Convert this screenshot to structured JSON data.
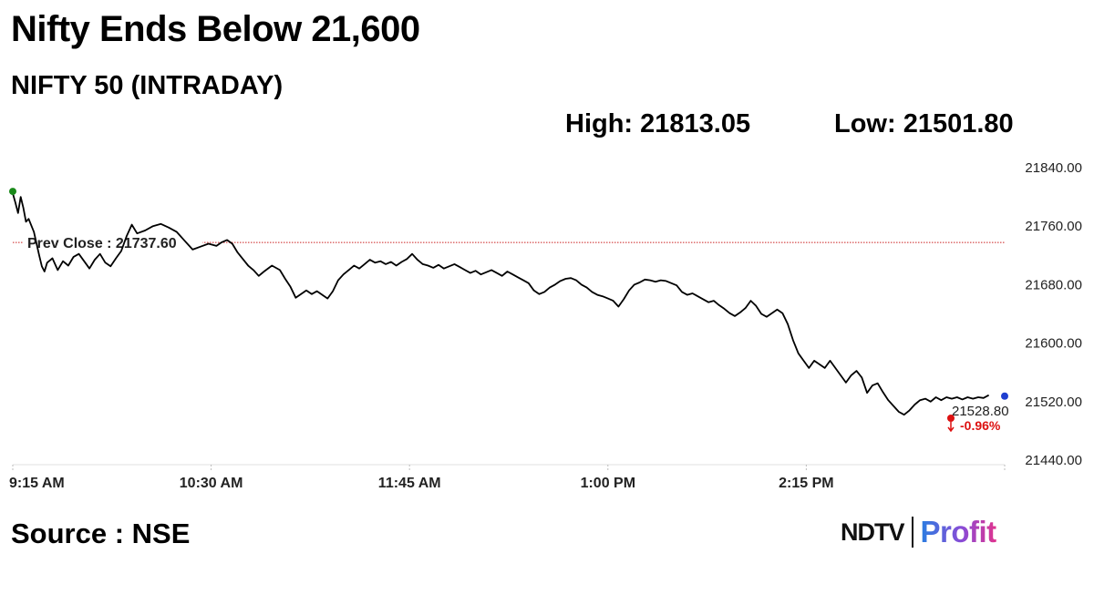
{
  "headline": "Nifty Ends Below 21,600",
  "subheadline": "NIFTY 50 (INTRADAY)",
  "high_text": "High: 21813.05",
  "low_text": "Low: 21501.80",
  "source": "Source : NSE",
  "logo": {
    "ndtv": "NDTV",
    "profit": "Profit"
  },
  "chart_data": {
    "type": "line",
    "ylim": [
      21440,
      21840
    ],
    "y_ticks": [
      "21840.00",
      "21760.00",
      "21680.00",
      "21600.00",
      "21520.00",
      "21440.00"
    ],
    "y_tick_values": [
      21840,
      21760,
      21680,
      21600,
      21520,
      21440
    ],
    "x_ticks": [
      "9:15 AM",
      "10:30 AM",
      "11:45 AM",
      "1:00 PM",
      "2:15 PM"
    ],
    "x_tick_minutes": [
      555,
      630,
      705,
      780,
      855
    ],
    "xlim_minutes": [
      555,
      930
    ],
    "prev_close": 21737.6,
    "prev_close_label": "Prev Close : 21737.60",
    "last_value_label": "21528.80",
    "change_label": "-0.96%",
    "colors": {
      "line": "#000000",
      "prev_close": "#cc2222",
      "start_dot": "#1a8a1a",
      "last_dot": "#1f3fd0",
      "change": "#dd1111"
    },
    "series": [
      {
        "points": [
          [
            555,
            21805
          ],
          [
            556,
            21792
          ],
          [
            557,
            21778
          ],
          [
            558,
            21800
          ],
          [
            559,
            21785
          ],
          [
            560,
            21766
          ],
          [
            561,
            21770
          ],
          [
            563,
            21752
          ],
          [
            565,
            21720
          ],
          [
            566,
            21705
          ],
          [
            567,
            21698
          ],
          [
            568,
            21710
          ],
          [
            570,
            21716
          ],
          [
            572,
            21700
          ],
          [
            574,
            21712
          ],
          [
            576,
            21706
          ],
          [
            578,
            21718
          ],
          [
            580,
            21722
          ],
          [
            582,
            21712
          ],
          [
            584,
            21702
          ],
          [
            586,
            21714
          ],
          [
            588,
            21722
          ],
          [
            590,
            21710
          ],
          [
            592,
            21705
          ],
          [
            594,
            21716
          ],
          [
            596,
            21726
          ],
          [
            598,
            21746
          ],
          [
            600,
            21762
          ],
          [
            602,
            21750
          ],
          [
            605,
            21754
          ],
          [
            608,
            21760
          ],
          [
            611,
            21763
          ],
          [
            614,
            21758
          ],
          [
            617,
            21752
          ],
          [
            620,
            21740
          ],
          [
            623,
            21728
          ],
          [
            626,
            21732
          ],
          [
            629,
            21736
          ],
          [
            632,
            21733
          ],
          [
            634,
            21738
          ],
          [
            636,
            21741
          ],
          [
            638,
            21736
          ],
          [
            640,
            21724
          ],
          [
            642,
            21715
          ],
          [
            644,
            21706
          ],
          [
            646,
            21700
          ],
          [
            648,
            21692
          ],
          [
            650,
            21698
          ],
          [
            653,
            21706
          ],
          [
            656,
            21700
          ],
          [
            658,
            21688
          ],
          [
            660,
            21677
          ],
          [
            662,
            21662
          ],
          [
            664,
            21667
          ],
          [
            666,
            21672
          ],
          [
            668,
            21667
          ],
          [
            670,
            21671
          ],
          [
            672,
            21666
          ],
          [
            674,
            21661
          ],
          [
            676,
            21671
          ],
          [
            678,
            21686
          ],
          [
            680,
            21694
          ],
          [
            682,
            21700
          ],
          [
            684,
            21706
          ],
          [
            686,
            21702
          ],
          [
            688,
            21708
          ],
          [
            690,
            21714
          ],
          [
            692,
            21710
          ],
          [
            694,
            21712
          ],
          [
            696,
            21708
          ],
          [
            698,
            21711
          ],
          [
            700,
            21706
          ],
          [
            702,
            21711
          ],
          [
            704,
            21715
          ],
          [
            706,
            21722
          ],
          [
            708,
            21714
          ],
          [
            710,
            21708
          ],
          [
            712,
            21706
          ],
          [
            714,
            21703
          ],
          [
            716,
            21707
          ],
          [
            718,
            21702
          ],
          [
            720,
            21705
          ],
          [
            722,
            21708
          ],
          [
            724,
            21704
          ],
          [
            726,
            21700
          ],
          [
            728,
            21696
          ],
          [
            730,
            21699
          ],
          [
            732,
            21694
          ],
          [
            734,
            21697
          ],
          [
            736,
            21700
          ],
          [
            738,
            21696
          ],
          [
            740,
            21692
          ],
          [
            742,
            21698
          ],
          [
            744,
            21694
          ],
          [
            746,
            21690
          ],
          [
            748,
            21686
          ],
          [
            750,
            21682
          ],
          [
            752,
            21672
          ],
          [
            754,
            21667
          ],
          [
            756,
            21670
          ],
          [
            758,
            21676
          ],
          [
            760,
            21680
          ],
          [
            762,
            21685
          ],
          [
            764,
            21688
          ],
          [
            766,
            21689
          ],
          [
            768,
            21686
          ],
          [
            770,
            21680
          ],
          [
            772,
            21676
          ],
          [
            774,
            21670
          ],
          [
            776,
            21666
          ],
          [
            778,
            21664
          ],
          [
            780,
            21661
          ],
          [
            782,
            21658
          ],
          [
            784,
            21650
          ],
          [
            786,
            21660
          ],
          [
            788,
            21672
          ],
          [
            790,
            21680
          ],
          [
            792,
            21683
          ],
          [
            794,
            21687
          ],
          [
            796,
            21686
          ],
          [
            798,
            21684
          ],
          [
            800,
            21686
          ],
          [
            802,
            21685
          ],
          [
            804,
            21682
          ],
          [
            806,
            21679
          ],
          [
            808,
            21670
          ],
          [
            810,
            21666
          ],
          [
            812,
            21668
          ],
          [
            814,
            21664
          ],
          [
            816,
            21660
          ],
          [
            818,
            21656
          ],
          [
            820,
            21658
          ],
          [
            822,
            21652
          ],
          [
            824,
            21647
          ],
          [
            826,
            21641
          ],
          [
            828,
            21637
          ],
          [
            830,
            21642
          ],
          [
            832,
            21648
          ],
          [
            834,
            21658
          ],
          [
            836,
            21651
          ],
          [
            838,
            21640
          ],
          [
            840,
            21636
          ],
          [
            842,
            21641
          ],
          [
            844,
            21646
          ],
          [
            846,
            21641
          ],
          [
            848,
            21626
          ],
          [
            850,
            21604
          ],
          [
            852,
            21586
          ],
          [
            854,
            21576
          ],
          [
            856,
            21566
          ],
          [
            858,
            21576
          ],
          [
            860,
            21571
          ],
          [
            862,
            21566
          ],
          [
            864,
            21576
          ],
          [
            866,
            21566
          ],
          [
            868,
            21556
          ],
          [
            870,
            21546
          ],
          [
            872,
            21556
          ],
          [
            874,
            21562
          ],
          [
            876,
            21553
          ],
          [
            878,
            21532
          ],
          [
            880,
            21542
          ],
          [
            882,
            21545
          ],
          [
            884,
            21533
          ],
          [
            886,
            21522
          ],
          [
            888,
            21514
          ],
          [
            890,
            21506
          ],
          [
            892,
            21502
          ],
          [
            894,
            21508
          ],
          [
            896,
            21516
          ],
          [
            898,
            21522
          ],
          [
            900,
            21524
          ],
          [
            902,
            21520
          ],
          [
            904,
            21526
          ],
          [
            906,
            21522
          ],
          [
            908,
            21526
          ],
          [
            910,
            21524
          ],
          [
            912,
            21526
          ],
          [
            914,
            21523
          ],
          [
            916,
            21526
          ],
          [
            918,
            21524
          ],
          [
            920,
            21526
          ],
          [
            922,
            21525
          ],
          [
            924,
            21528.8
          ]
        ]
      }
    ]
  }
}
